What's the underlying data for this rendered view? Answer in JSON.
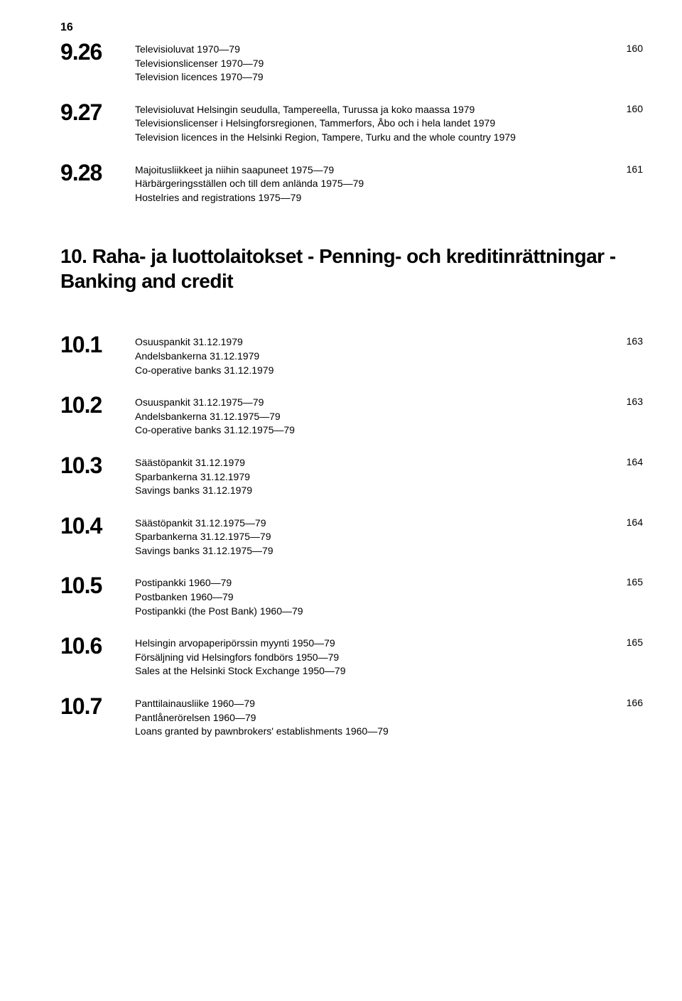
{
  "pageNumber": "16",
  "topEntries": [
    {
      "number": "9.26",
      "lines": [
        "Televisioluvat 1970—79",
        "Televisionslicenser 1970—79",
        "Television licences 1970—79"
      ],
      "page": "160"
    },
    {
      "number": "9.27",
      "lines": [
        "Televisioluvat Helsingin seudulla, Tampereella, Turussa ja koko maassa 1979",
        "Televisionslicenser i Helsingforsregionen, Tammerfors, Åbo och i hela landet 1979",
        "Television licences in the Helsinki Region, Tampere, Turku and the whole country 1979"
      ],
      "page": "160"
    },
    {
      "number": "9.28",
      "lines": [
        "Majoitusliikkeet ja niihin saapuneet 1975—79",
        "Härbärgeringsställen och till dem anlända 1975—79",
        "Hostelries and registrations 1975—79"
      ],
      "page": "161"
    }
  ],
  "sectionHeading": "10. Raha- ja luottolaitokset - Penning- och kredit­inrättningar - Banking and credit",
  "bottomEntries": [
    {
      "number": "10.1",
      "lines": [
        "Osuuspankit 31.12.1979",
        "Andelsbankerna 31.12.1979",
        "Co-operative banks 31.12.1979"
      ],
      "page": "163"
    },
    {
      "number": "10.2",
      "lines": [
        "Osuuspankit 31.12.1975—79",
        "Andelsbankerna 31.12.1975—79",
        "Co-operative banks 31.12.1975—79"
      ],
      "page": "163"
    },
    {
      "number": "10.3",
      "lines": [
        "Säästöpankit 31.12.1979",
        "Sparbankerna 31.12.1979",
        "Savings banks 31.12.1979"
      ],
      "page": "164"
    },
    {
      "number": "10.4",
      "lines": [
        "Säästöpankit 31.12.1975—79",
        "Sparbankerna 31.12.1975—79",
        "Savings banks 31.12.1975—79"
      ],
      "page": "164"
    },
    {
      "number": "10.5",
      "lines": [
        "Postipankki 1960—79",
        "Postbanken 1960—79",
        "Postipankki (the Post Bank) 1960—79"
      ],
      "page": "165"
    },
    {
      "number": "10.6",
      "lines": [
        "Helsingin arvopaperipörssin myynti 1950—79",
        "Försäljning vid Helsingfors fondbörs 1950—79",
        "Sales at the Helsinki Stock Exchange 1950—79"
      ],
      "page": "165"
    },
    {
      "number": "10.7",
      "lines": [
        "Panttilainausliike 1960—79",
        "Pantlånerörelsen 1960—79",
        "Loans granted by pawnbrokers' establishments 1960—79"
      ],
      "page": "166"
    }
  ]
}
